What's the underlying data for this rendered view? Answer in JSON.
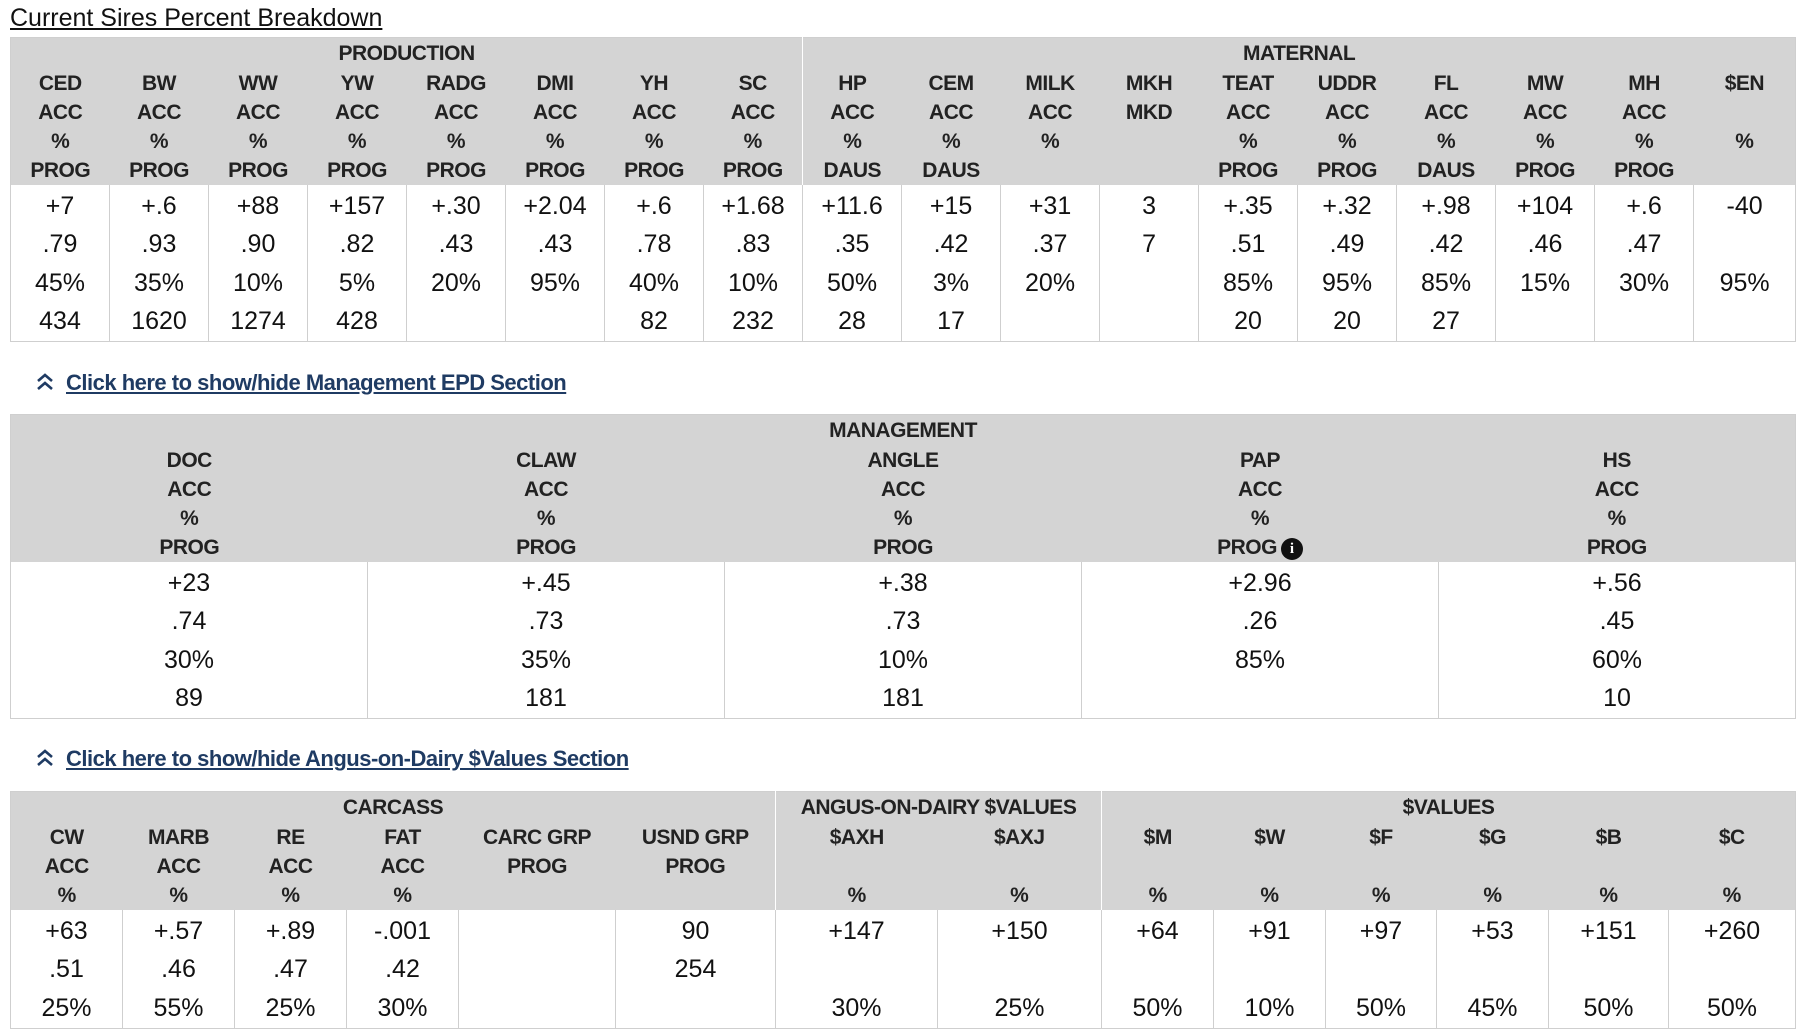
{
  "page_title": "Current Sires Percent Breakdown",
  "table1": {
    "groups": [
      {
        "label": "PRODUCTION",
        "span": 8
      },
      {
        "label": "MATERNAL",
        "span": 10
      }
    ],
    "columns": [
      {
        "lines": [
          "CED",
          "ACC",
          "%",
          "PROG"
        ]
      },
      {
        "lines": [
          "BW",
          "ACC",
          "%",
          "PROG"
        ]
      },
      {
        "lines": [
          "WW",
          "ACC",
          "%",
          "PROG"
        ]
      },
      {
        "lines": [
          "YW",
          "ACC",
          "%",
          "PROG"
        ]
      },
      {
        "lines": [
          "RADG",
          "ACC",
          "%",
          "PROG"
        ]
      },
      {
        "lines": [
          "DMI",
          "ACC",
          "%",
          "PROG"
        ]
      },
      {
        "lines": [
          "YH",
          "ACC",
          "%",
          "PROG"
        ]
      },
      {
        "lines": [
          "SC",
          "ACC",
          "%",
          "PROG"
        ]
      },
      {
        "lines": [
          "HP",
          "ACC",
          "%",
          "DAUS"
        ]
      },
      {
        "lines": [
          "CEM",
          "ACC",
          "%",
          "DAUS"
        ]
      },
      {
        "lines": [
          "MILK",
          "ACC",
          "%",
          ""
        ]
      },
      {
        "lines": [
          "MKH",
          "MKD",
          "",
          ""
        ]
      },
      {
        "lines": [
          "TEAT",
          "ACC",
          "%",
          "PROG"
        ]
      },
      {
        "lines": [
          "UDDR",
          "ACC",
          "%",
          "PROG"
        ]
      },
      {
        "lines": [
          "FL",
          "ACC",
          "%",
          "DAUS"
        ]
      },
      {
        "lines": [
          "MW",
          "ACC",
          "%",
          "PROG"
        ]
      },
      {
        "lines": [
          "MH",
          "ACC",
          "%",
          "PROG"
        ]
      },
      {
        "lines": [
          "$EN",
          "",
          "%",
          ""
        ]
      }
    ],
    "rows": [
      [
        "+7",
        "+.6",
        "+88",
        "+157",
        "+.30",
        "+2.04",
        "+.6",
        "+1.68",
        "+11.6",
        "+15",
        "+31",
        "3",
        "+.35",
        "+.32",
        "+.98",
        "+104",
        "+.6",
        "-40"
      ],
      [
        ".79",
        ".93",
        ".90",
        ".82",
        ".43",
        ".43",
        ".78",
        ".83",
        ".35",
        ".42",
        ".37",
        "7",
        ".51",
        ".49",
        ".42",
        ".46",
        ".47",
        ""
      ],
      [
        "45%",
        "35%",
        "10%",
        "5%",
        "20%",
        "95%",
        "40%",
        "10%",
        "50%",
        "3%",
        "20%",
        "",
        "85%",
        "95%",
        "85%",
        "15%",
        "30%",
        "95%"
      ],
      [
        "434",
        "1620",
        "1274",
        "428",
        "",
        "",
        "82",
        "232",
        "28",
        "17",
        "",
        "",
        "20",
        "20",
        "27",
        "",
        "",
        ""
      ]
    ]
  },
  "toggle1": {
    "label": "Click here to show/hide Management EPD Section",
    "icon": "double-chevron-up-icon"
  },
  "table2": {
    "groups": [
      {
        "label": "MANAGEMENT",
        "span": 5
      }
    ],
    "columns": [
      {
        "lines": [
          "DOC",
          "ACC",
          "%",
          "PROG"
        ]
      },
      {
        "lines": [
          "CLAW",
          "ACC",
          "%",
          "PROG"
        ]
      },
      {
        "lines": [
          "ANGLE",
          "ACC",
          "%",
          "PROG"
        ]
      },
      {
        "lines": [
          "PAP",
          "ACC",
          "%",
          "PROG"
        ],
        "info_icon": true
      },
      {
        "lines": [
          "HS",
          "ACC",
          "%",
          "PROG"
        ]
      }
    ],
    "rows": [
      [
        "+23",
        "+.45",
        "+.38",
        "+2.96",
        "+.56"
      ],
      [
        ".74",
        ".73",
        ".73",
        ".26",
        ".45"
      ],
      [
        "30%",
        "35%",
        "10%",
        "85%",
        "60%"
      ],
      [
        "89",
        "181",
        "181",
        "",
        "10"
      ]
    ]
  },
  "toggle2": {
    "label": "Click here to show/hide Angus-on-Dairy $Values Section",
    "icon": "double-chevron-up-icon"
  },
  "table3": {
    "groups": [
      {
        "label": "CARCASS",
        "span": 6
      },
      {
        "label": "ANGUS-ON-DAIRY $VALUES",
        "span": 2
      },
      {
        "label": "$VALUES",
        "span": 6
      }
    ],
    "columns": [
      {
        "lines": [
          "CW",
          "ACC",
          "%"
        ]
      },
      {
        "lines": [
          "MARB",
          "ACC",
          "%"
        ]
      },
      {
        "lines": [
          "RE",
          "ACC",
          "%"
        ]
      },
      {
        "lines": [
          "FAT",
          "ACC",
          "%"
        ]
      },
      {
        "lines": [
          "CARC GRP",
          "PROG",
          ""
        ]
      },
      {
        "lines": [
          "USND GRP",
          "PROG",
          ""
        ]
      },
      {
        "lines": [
          "$AXH",
          "",
          "%"
        ]
      },
      {
        "lines": [
          "$AXJ",
          "",
          "%"
        ]
      },
      {
        "lines": [
          "$M",
          "",
          "%"
        ]
      },
      {
        "lines": [
          "$W",
          "",
          "%"
        ]
      },
      {
        "lines": [
          "$F",
          "",
          "%"
        ]
      },
      {
        "lines": [
          "$G",
          "",
          "%"
        ]
      },
      {
        "lines": [
          "$B",
          "",
          "%"
        ]
      },
      {
        "lines": [
          "$C",
          "",
          "%"
        ]
      }
    ],
    "rows": [
      [
        "+63",
        "+.57",
        "+.89",
        "-.001",
        "",
        "90",
        "+147",
        "+150",
        "+64",
        "+91",
        "+97",
        "+53",
        "+151",
        "+260"
      ],
      [
        ".51",
        ".46",
        ".47",
        ".42",
        "",
        "254",
        "",
        "",
        "",
        "",
        "",
        "",
        "",
        ""
      ],
      [
        "25%",
        "55%",
        "25%",
        "30%",
        "",
        "",
        "30%",
        "25%",
        "50%",
        "10%",
        "50%",
        "45%",
        "50%",
        "50%"
      ]
    ]
  }
}
